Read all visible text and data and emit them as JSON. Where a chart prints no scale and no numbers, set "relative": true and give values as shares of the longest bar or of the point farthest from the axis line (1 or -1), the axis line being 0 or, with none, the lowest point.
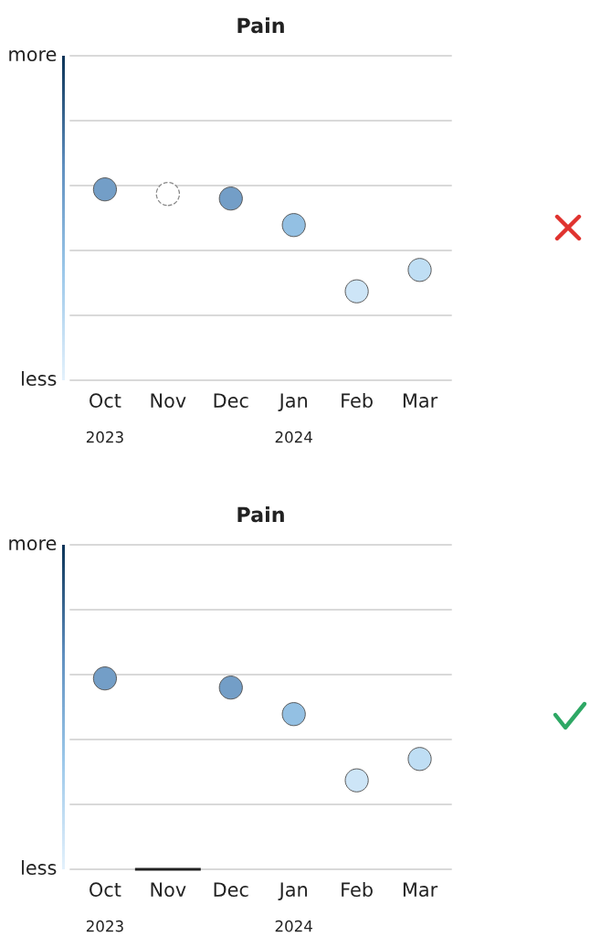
{
  "chart_data": [
    {
      "type": "scatter",
      "title": "Pain",
      "categories": [
        "Oct\n2023",
        "Nov",
        "Dec",
        "Jan\n2024",
        "Feb",
        "Mar"
      ],
      "values": [
        1,
        0.976,
        0.952,
        0.813,
        0.466,
        0.578
      ],
      "colors": [
        "#739ec7",
        null,
        "#739ec7",
        "#93c0e3",
        "#cde5f7",
        "#bfdef4"
      ],
      "relative": true,
      "annotations": [
        "more",
        "less"
      ],
      "marker": "circle",
      "ref_lines": [
        {
          "axis": "y",
          "value": 0,
          "color": "#cccccc"
        },
        {
          "axis": "y",
          "value": 0.34,
          "color": "#cccccc"
        },
        {
          "axis": "y",
          "value": 0.68,
          "color": "#cccccc"
        },
        {
          "axis": "y",
          "value": 1.02,
          "color": "#cccccc"
        },
        {
          "axis": "y",
          "value": 1.36,
          "color": "#cccccc"
        },
        {
          "axis": "y",
          "value": 1.7,
          "color": "#cccccc"
        }
      ]
    },
    {
      "type": "scatter",
      "title": "Pain",
      "categories": [
        "Oct\n2023",
        "Nov",
        "Dec",
        "Jan\n2024",
        "Feb",
        "Mar"
      ],
      "values": [
        1,
        null,
        0.952,
        0.813,
        0.466,
        0.578
      ],
      "colors": [
        "#739ec7",
        null,
        "#739ec7",
        "#93c0e3",
        "#cde5f7",
        "#bfdef4"
      ],
      "relative": true,
      "annotations": [
        "more",
        "less"
      ],
      "marker": "circle",
      "ref_lines": [
        {
          "axis": "y",
          "value": 0,
          "color": "#cccccc"
        },
        {
          "axis": "y",
          "value": 0.34,
          "color": "#cccccc"
        },
        {
          "axis": "y",
          "value": 0.68,
          "color": "#cccccc"
        },
        {
          "axis": "y",
          "value": 1.02,
          "color": "#cccccc"
        },
        {
          "axis": "y",
          "value": 1.36,
          "color": "#cccccc"
        },
        {
          "axis": "y",
          "value": 1.7,
          "color": "#cccccc"
        }
      ]
    }
  ]
}
